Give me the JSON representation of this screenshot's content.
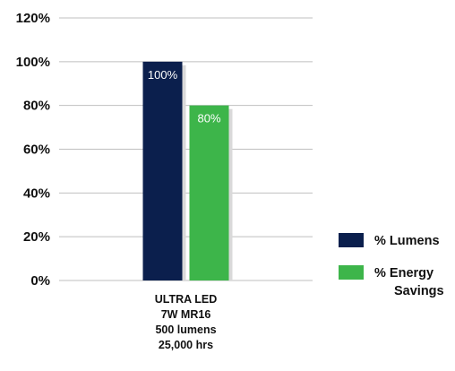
{
  "chart_data": {
    "type": "bar",
    "categories": [
      "ULTRA LED\n7W MR16\n500 lumens\n25,000 hrs"
    ],
    "series": [
      {
        "name": "% Lumens",
        "values": [
          100
        ],
        "color": "#0b1f4d",
        "label": "100%"
      },
      {
        "name": "% Energy\nSavings",
        "values": [
          80
        ],
        "color": "#3db54a",
        "label": "80%"
      }
    ],
    "ylim": [
      0,
      120
    ],
    "yticks": [
      "0%",
      "20%",
      "40%",
      "60%",
      "80%",
      "100%",
      "120%"
    ],
    "title": "",
    "xlabel": "",
    "ylabel": "",
    "grid": true,
    "legend_position": "right",
    "gridline_color": "#bfbfbf",
    "shadow_color": "#d9d9d9"
  }
}
